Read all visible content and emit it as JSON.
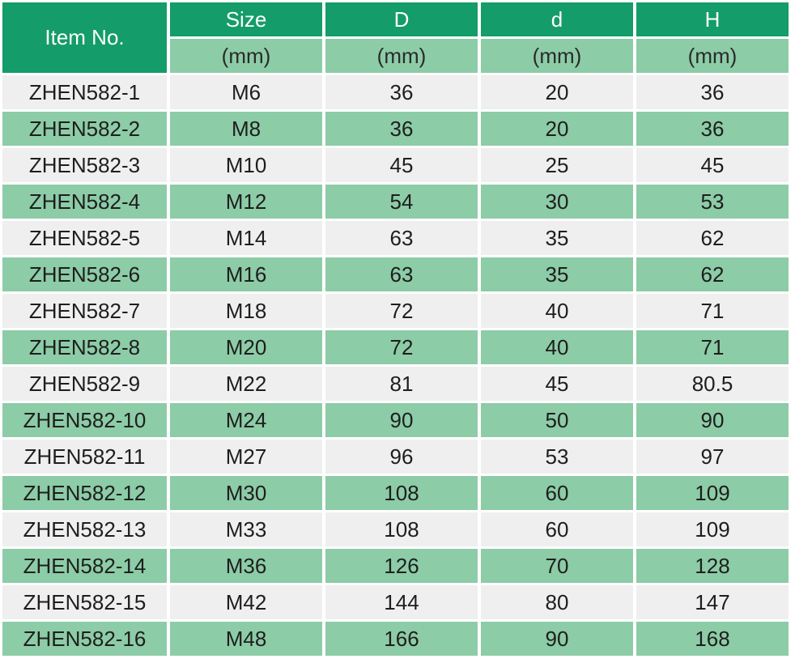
{
  "header": {
    "item_no": "Item No.",
    "columns": [
      "Size",
      "D",
      "d",
      "H"
    ],
    "units": [
      "(mm)",
      "(mm)",
      "(mm)",
      "(mm)"
    ]
  },
  "rows": [
    [
      "ZHEN582-1",
      "M6",
      "36",
      "20",
      "36"
    ],
    [
      "ZHEN582-2",
      "M8",
      "36",
      "20",
      "36"
    ],
    [
      "ZHEN582-3",
      "M10",
      "45",
      "25",
      "45"
    ],
    [
      "ZHEN582-4",
      "M12",
      "54",
      "30",
      "53"
    ],
    [
      "ZHEN582-5",
      "M14",
      "63",
      "35",
      "62"
    ],
    [
      "ZHEN582-6",
      "M16",
      "63",
      "35",
      "62"
    ],
    [
      "ZHEN582-7",
      "M18",
      "72",
      "40",
      "71"
    ],
    [
      "ZHEN582-8",
      "M20",
      "72",
      "40",
      "71"
    ],
    [
      "ZHEN582-9",
      "M22",
      "81",
      "45",
      "80.5"
    ],
    [
      "ZHEN582-10",
      "M24",
      "90",
      "50",
      "90"
    ],
    [
      "ZHEN582-11",
      "M27",
      "96",
      "53",
      "97"
    ],
    [
      "ZHEN582-12",
      "M30",
      "108",
      "60",
      "109"
    ],
    [
      "ZHEN582-13",
      "M33",
      "108",
      "60",
      "109"
    ],
    [
      "ZHEN582-14",
      "M36",
      "126",
      "70",
      "128"
    ],
    [
      "ZHEN582-15",
      "M42",
      "144",
      "80",
      "147"
    ],
    [
      "ZHEN582-16",
      "M48",
      "166",
      "90",
      "168"
    ]
  ],
  "colors": {
    "header_green": "#149c6a",
    "light_green": "#8ccca7",
    "light_gray": "#efefef"
  }
}
